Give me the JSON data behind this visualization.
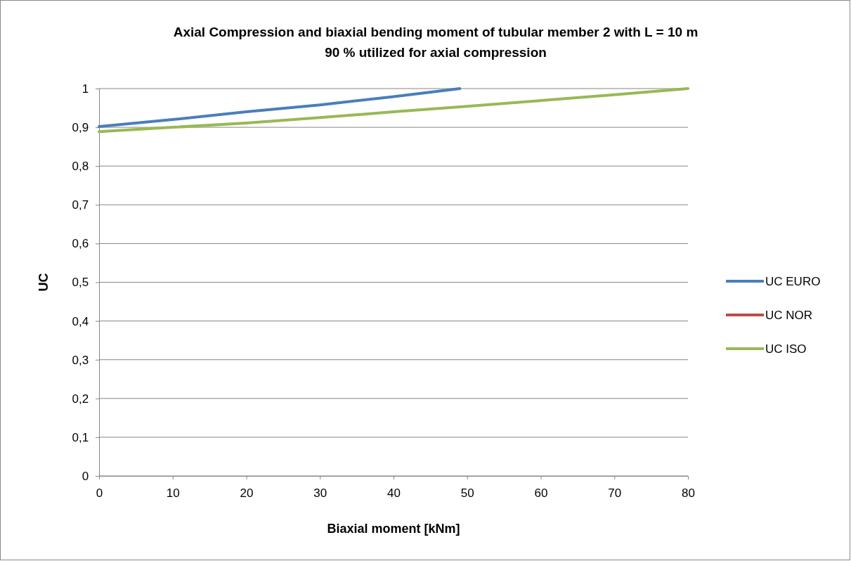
{
  "chart_data": {
    "type": "line",
    "title": "Axial Compression and biaxial bending moment of tubular member 2 with L = 10 m",
    "subtitle": "90 % utilized for axial compression",
    "xlabel": "Biaxial moment [kNm]",
    "ylabel": "UC",
    "x": [
      0,
      10,
      20,
      30,
      40,
      49
    ],
    "series": [
      {
        "name": "UC EURO",
        "color": "#4a7ebb",
        "values": [
          0.902,
          0.92,
          0.94,
          0.958,
          0.979,
          1.0
        ]
      },
      {
        "name": "UC NOR",
        "color": "#be4b48",
        "values": [
          null,
          null,
          null,
          null,
          null,
          null
        ]
      },
      {
        "name": "UC ISO",
        "color": "#98b954",
        "x": [
          0,
          10,
          20,
          30,
          40,
          50,
          60,
          70,
          80
        ],
        "values": [
          0.889,
          0.9,
          0.911,
          0.925,
          0.94,
          0.954,
          0.969,
          0.984,
          1.0
        ]
      }
    ],
    "xlim": [
      0,
      80
    ],
    "xticks": [
      0,
      10,
      20,
      30,
      40,
      50,
      60,
      70,
      80
    ],
    "ylim": [
      0,
      1
    ],
    "yticks": [
      0,
      {
        "value": 0.1,
        "label": "0,1"
      },
      {
        "value": 0.2,
        "label": "0,2"
      },
      {
        "value": 0.3,
        "label": "0,3"
      },
      {
        "value": 0.4,
        "label": "0,4"
      },
      {
        "value": 0.5,
        "label": "0,5"
      },
      {
        "value": 0.6,
        "label": "0,6"
      },
      {
        "value": 0.7,
        "label": "0,7"
      },
      {
        "value": 0.8,
        "label": "0,8"
      },
      {
        "value": 0.9,
        "label": "0,9"
      },
      1
    ],
    "grid": "y",
    "legend": "right",
    "marker": "none",
    "line_style": "solid"
  }
}
